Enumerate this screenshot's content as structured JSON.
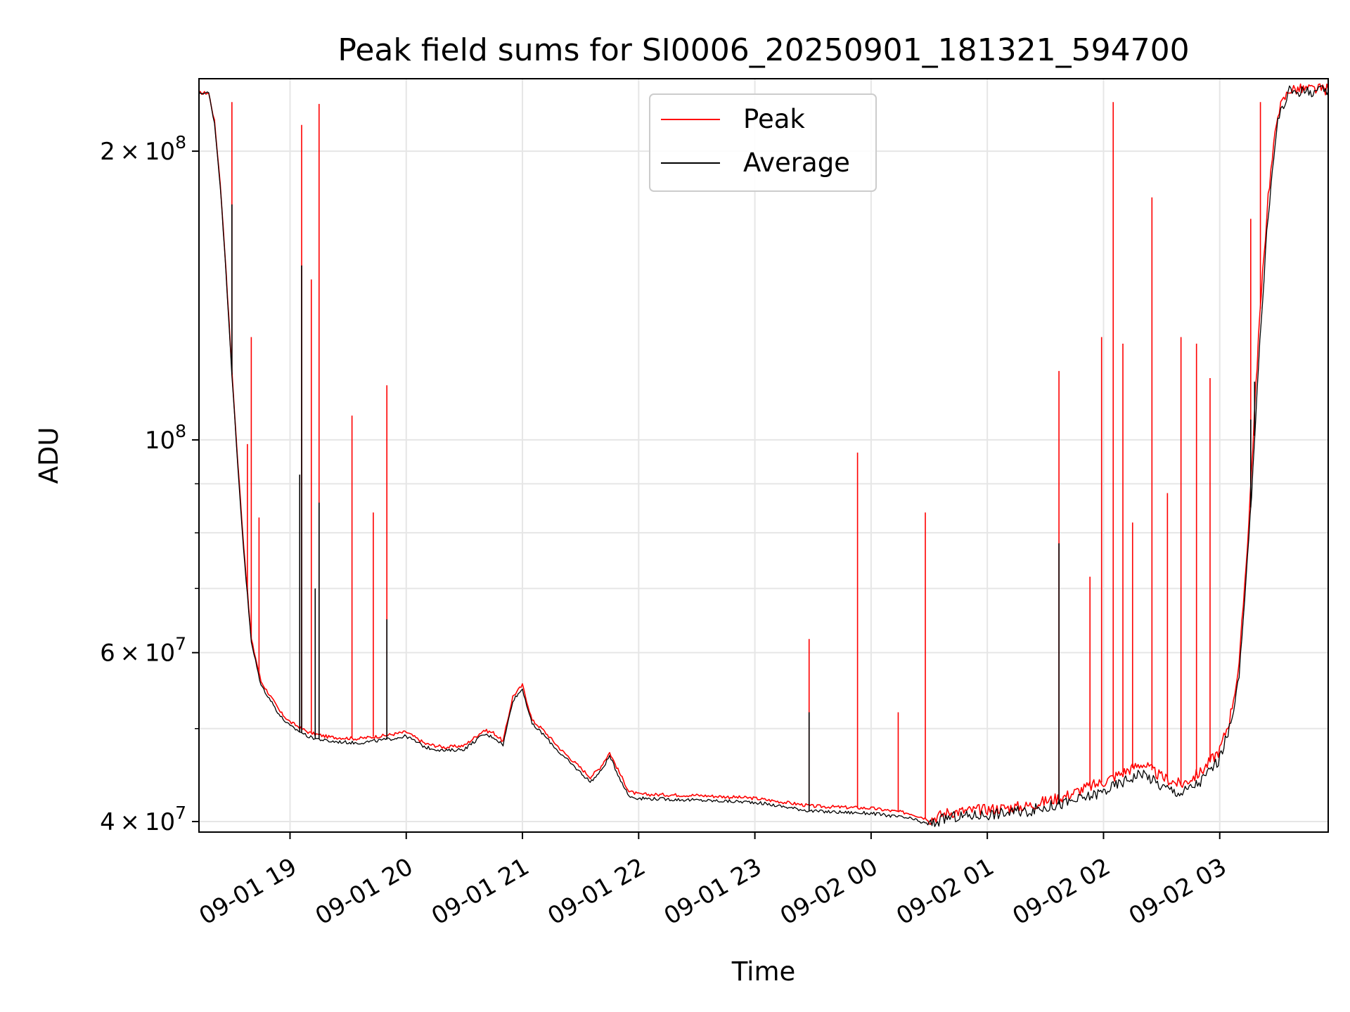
{
  "chart_data": {
    "type": "line",
    "title": "Peak field sums for SI0006_20250901_181321_594700",
    "xlabel": "Time",
    "ylabel": "ADU",
    "yscale": "log",
    "xlim": [
      "2025-09-01 18:13",
      "2025-09-02 03:56"
    ],
    "ylim": [
      39000000,
      238000000
    ],
    "grid": true,
    "legend_position": "top-center",
    "x_ticks": [
      {
        "label": "09-01 19",
        "value": "2025-09-01 19:00"
      },
      {
        "label": "09-01 20",
        "value": "2025-09-01 20:00"
      },
      {
        "label": "09-01 21",
        "value": "2025-09-01 21:00"
      },
      {
        "label": "09-01 22",
        "value": "2025-09-01 22:00"
      },
      {
        "label": "09-01 23",
        "value": "2025-09-01 23:00"
      },
      {
        "label": "09-02 00",
        "value": "2025-09-02 00:00"
      },
      {
        "label": "09-02 01",
        "value": "2025-09-02 01:00"
      },
      {
        "label": "09-02 02",
        "value": "2025-09-02 02:00"
      },
      {
        "label": "09-02 03",
        "value": "2025-09-02 03:00"
      }
    ],
    "y_ticks": [
      {
        "mantissa": "4",
        "times": "×",
        "base": "10",
        "exponent": "7",
        "value": 40000000
      },
      {
        "mantissa": "6",
        "times": "×",
        "base": "10",
        "exponent": "7",
        "value": 60000000
      },
      {
        "mantissa": "",
        "times": "",
        "base": "10",
        "exponent": "8",
        "value": 100000000
      },
      {
        "mantissa": "2",
        "times": "×",
        "base": "10",
        "exponent": "8",
        "value": 200000000
      }
    ],
    "y_minor_ticks": [
      50000000,
      70000000,
      80000000,
      90000000,
      300000000
    ],
    "series": [
      {
        "name": "Peak",
        "color": "#ff0000",
        "baseline": [
          [
            "2025-09-01 18:13",
            230000000
          ],
          [
            "2025-09-01 18:18",
            230000000
          ],
          [
            "2025-09-01 18:21",
            215000000
          ],
          [
            "2025-09-01 18:24",
            185000000
          ],
          [
            "2025-09-01 18:27",
            150000000
          ],
          [
            "2025-09-01 18:30",
            118000000
          ],
          [
            "2025-09-01 18:33",
            95000000
          ],
          [
            "2025-09-01 18:36",
            78000000
          ],
          [
            "2025-09-01 18:40",
            62000000
          ],
          [
            "2025-09-01 18:45",
            56000000
          ],
          [
            "2025-09-01 18:50",
            54000000
          ],
          [
            "2025-09-01 18:55",
            52000000
          ],
          [
            "2025-09-01 19:00",
            50800000
          ],
          [
            "2025-09-01 19:10",
            49500000
          ],
          [
            "2025-09-01 19:20",
            49000000
          ],
          [
            "2025-09-01 19:35",
            48800000
          ],
          [
            "2025-09-01 19:50",
            49200000
          ],
          [
            "2025-09-01 20:00",
            49600000
          ],
          [
            "2025-09-01 20:10",
            48200000
          ],
          [
            "2025-09-01 20:20",
            47800000
          ],
          [
            "2025-09-01 20:30",
            48000000
          ],
          [
            "2025-09-01 20:40",
            49800000
          ],
          [
            "2025-09-01 20:45",
            49500000
          ],
          [
            "2025-09-01 20:50",
            48500000
          ],
          [
            "2025-09-01 20:55",
            54000000
          ],
          [
            "2025-09-01 21:00",
            55500000
          ],
          [
            "2025-09-01 21:05",
            51000000
          ],
          [
            "2025-09-01 21:10",
            50000000
          ],
          [
            "2025-09-01 21:20",
            47500000
          ],
          [
            "2025-09-01 21:30",
            45500000
          ],
          [
            "2025-09-01 21:35",
            44500000
          ],
          [
            "2025-09-01 21:40",
            45500000
          ],
          [
            "2025-09-01 21:45",
            47200000
          ],
          [
            "2025-09-01 21:50",
            45000000
          ],
          [
            "2025-09-01 21:55",
            43000000
          ],
          [
            "2025-09-01 22:00",
            42700000
          ],
          [
            "2025-09-01 22:30",
            42600000
          ],
          [
            "2025-09-01 23:00",
            42300000
          ],
          [
            "2025-09-01 23:30",
            41500000
          ],
          [
            "2025-09-02 00:00",
            41300000
          ],
          [
            "2025-09-02 00:20",
            40800000
          ],
          [
            "2025-09-02 00:30",
            40200000
          ],
          [
            "2025-09-02 00:40",
            40900000
          ],
          [
            "2025-09-02 01:00",
            41200000
          ],
          [
            "2025-09-02 01:20",
            41500000
          ],
          [
            "2025-09-02 01:40",
            42500000
          ],
          [
            "2025-09-02 01:50",
            43300000
          ],
          [
            "2025-09-02 02:00",
            44000000
          ],
          [
            "2025-09-02 02:10",
            45000000
          ],
          [
            "2025-09-02 02:20",
            46000000
          ],
          [
            "2025-09-02 02:30",
            44500000
          ],
          [
            "2025-09-02 02:40",
            43700000
          ],
          [
            "2025-09-02 02:50",
            45000000
          ],
          [
            "2025-09-02 03:00",
            47500000
          ],
          [
            "2025-09-02 03:05",
            51000000
          ],
          [
            "2025-09-02 03:10",
            58000000
          ],
          [
            "2025-09-02 03:15",
            82000000
          ],
          [
            "2025-09-02 03:20",
            128000000
          ],
          [
            "2025-09-02 03:25",
            180000000
          ],
          [
            "2025-09-02 03:30",
            220000000
          ],
          [
            "2025-09-02 03:36",
            232000000
          ],
          [
            "2025-09-02 03:56",
            232000000
          ]
        ],
        "spikes": [
          [
            "2025-09-01 18:30",
            225000000
          ],
          [
            "2025-09-01 18:40",
            128000000
          ],
          [
            "2025-09-01 18:38",
            99000000
          ],
          [
            "2025-09-01 18:44",
            83000000
          ],
          [
            "2025-09-01 19:06",
            213000000
          ],
          [
            "2025-09-01 19:11",
            147000000
          ],
          [
            "2025-09-01 19:15",
            224000000
          ],
          [
            "2025-09-01 19:32",
            106000000
          ],
          [
            "2025-09-01 19:43",
            84000000
          ],
          [
            "2025-09-01 19:50",
            114000000
          ],
          [
            "2025-09-01 23:28",
            62000000
          ],
          [
            "2025-09-01 23:53",
            97000000
          ],
          [
            "2025-09-02 00:14",
            52000000
          ],
          [
            "2025-09-02 00:28",
            84000000
          ],
          [
            "2025-09-02 01:37",
            118000000
          ],
          [
            "2025-09-02 01:53",
            72000000
          ],
          [
            "2025-09-02 01:59",
            128000000
          ],
          [
            "2025-09-02 02:05",
            225000000
          ],
          [
            "2025-09-02 02:10",
            126000000
          ],
          [
            "2025-09-02 02:15",
            82000000
          ],
          [
            "2025-09-02 02:25",
            179000000
          ],
          [
            "2025-09-02 02:33",
            88000000
          ],
          [
            "2025-09-02 02:40",
            128000000
          ],
          [
            "2025-09-02 02:48",
            126000000
          ],
          [
            "2025-09-02 02:55",
            116000000
          ],
          [
            "2025-09-02 03:16",
            170000000
          ],
          [
            "2025-09-02 03:21",
            225000000
          ]
        ]
      },
      {
        "name": "Average",
        "color": "#000000",
        "baseline": [
          [
            "2025-09-01 18:13",
            230000000
          ],
          [
            "2025-09-01 18:18",
            230000000
          ],
          [
            "2025-09-01 18:21",
            214000000
          ],
          [
            "2025-09-01 18:24",
            184000000
          ],
          [
            "2025-09-01 18:27",
            149000000
          ],
          [
            "2025-09-01 18:30",
            117000000
          ],
          [
            "2025-09-01 18:33",
            94000000
          ],
          [
            "2025-09-01 18:36",
            77000000
          ],
          [
            "2025-09-01 18:40",
            61500000
          ],
          [
            "2025-09-01 18:45",
            55500000
          ],
          [
            "2025-09-01 18:50",
            53500000
          ],
          [
            "2025-09-01 18:55",
            51500000
          ],
          [
            "2025-09-01 19:00",
            50300000
          ],
          [
            "2025-09-01 19:10",
            49000000
          ],
          [
            "2025-09-01 19:20",
            48500000
          ],
          [
            "2025-09-01 19:35",
            48300000
          ],
          [
            "2025-09-01 19:50",
            48700000
          ],
          [
            "2025-09-01 20:00",
            49100000
          ],
          [
            "2025-09-01 20:10",
            47800000
          ],
          [
            "2025-09-01 20:20",
            47400000
          ],
          [
            "2025-09-01 20:30",
            47600000
          ],
          [
            "2025-09-01 20:40",
            49300000
          ],
          [
            "2025-09-01 20:45",
            49000000
          ],
          [
            "2025-09-01 20:50",
            48100000
          ],
          [
            "2025-09-01 20:55",
            53500000
          ],
          [
            "2025-09-01 21:00",
            55000000
          ],
          [
            "2025-09-01 21:05",
            50500000
          ],
          [
            "2025-09-01 21:10",
            49500000
          ],
          [
            "2025-09-01 21:20",
            47000000
          ],
          [
            "2025-09-01 21:30",
            45000000
          ],
          [
            "2025-09-01 21:35",
            44000000
          ],
          [
            "2025-09-01 21:40",
            45000000
          ],
          [
            "2025-09-01 21:45",
            46800000
          ],
          [
            "2025-09-01 21:50",
            44500000
          ],
          [
            "2025-09-01 21:55",
            42500000
          ],
          [
            "2025-09-01 22:00",
            42300000
          ],
          [
            "2025-09-01 22:30",
            42100000
          ],
          [
            "2025-09-01 23:00",
            41900000
          ],
          [
            "2025-09-01 23:30",
            41000000
          ],
          [
            "2025-09-02 00:00",
            40800000
          ],
          [
            "2025-09-02 00:20",
            40300000
          ],
          [
            "2025-09-02 00:30",
            39700000
          ],
          [
            "2025-09-02 00:40",
            40400000
          ],
          [
            "2025-09-02 01:00",
            40700000
          ],
          [
            "2025-09-02 01:20",
            41000000
          ],
          [
            "2025-09-02 01:40",
            41800000
          ],
          [
            "2025-09-02 01:50",
            42300000
          ],
          [
            "2025-09-02 02:00",
            43000000
          ],
          [
            "2025-09-02 02:10",
            44000000
          ],
          [
            "2025-09-02 02:20",
            45000000
          ],
          [
            "2025-09-02 02:30",
            43500000
          ],
          [
            "2025-09-02 02:40",
            42800000
          ],
          [
            "2025-09-02 02:50",
            44000000
          ],
          [
            "2025-09-02 03:00",
            46500000
          ],
          [
            "2025-09-02 03:05",
            50000000
          ],
          [
            "2025-09-02 03:10",
            56500000
          ],
          [
            "2025-09-02 03:15",
            78000000
          ],
          [
            "2025-09-02 03:20",
            120000000
          ],
          [
            "2025-09-02 03:25",
            172000000
          ],
          [
            "2025-09-02 03:30",
            216000000
          ],
          [
            "2025-09-02 03:36",
            231000000
          ],
          [
            "2025-09-02 03:56",
            231000000
          ]
        ],
        "spikes": [
          [
            "2025-09-01 18:30",
            176000000
          ],
          [
            "2025-09-01 19:06",
            152000000
          ],
          [
            "2025-09-01 19:05",
            92000000
          ],
          [
            "2025-09-01 19:15",
            86000000
          ],
          [
            "2025-09-01 19:13",
            70000000
          ],
          [
            "2025-09-01 19:50",
            65000000
          ],
          [
            "2025-09-01 23:28",
            52000000
          ],
          [
            "2025-09-02 01:37",
            78000000
          ],
          [
            "2025-09-02 03:16",
            105000000
          ],
          [
            "2025-09-02 03:18",
            115000000
          ]
        ]
      }
    ]
  }
}
